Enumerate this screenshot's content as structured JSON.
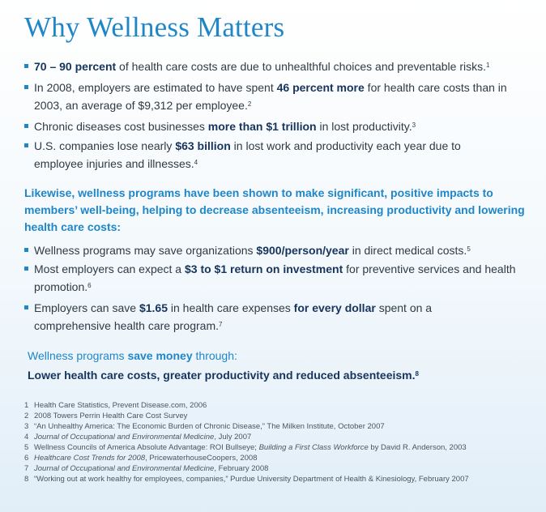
{
  "title": "Why Wellness Matters",
  "bullets_group_1": [
    {
      "parts": [
        {
          "text": "70 – 90 percent",
          "bold": true
        },
        {
          "text": " of health care costs are due to unhealthful choices and preventable risks.",
          "bold": false
        }
      ],
      "sup": "1"
    },
    {
      "parts": [
        {
          "text": "In 2008, employers are estimated to have spent ",
          "bold": false
        },
        {
          "text": "46 percent more",
          "bold": true
        },
        {
          "text": " for health care costs than in 2003, an average of $9,312 per employee.",
          "bold": false
        }
      ],
      "sup": "2"
    },
    {
      "parts": [
        {
          "text": "Chronic diseases cost businesses ",
          "bold": false
        },
        {
          "text": "more than $1 trillion",
          "bold": true
        },
        {
          "text": " in lost productivity.",
          "bold": false
        }
      ],
      "sup": "3"
    },
    {
      "parts": [
        {
          "text": "U.S. companies lose nearly ",
          "bold": false
        },
        {
          "text": "$63 billion",
          "bold": true
        },
        {
          "text": " in lost work and productivity each year due to employee injuries and illnesses.",
          "bold": false
        }
      ],
      "sup": "4"
    }
  ],
  "intro": "Likewise, wellness programs have been shown to make significant, positive impacts to members’ well-being, helping to decrease absenteeism, increasing productivity and lowering health care costs:",
  "bullets_group_2": [
    {
      "parts": [
        {
          "text": "Wellness programs may save organizations ",
          "bold": false
        },
        {
          "text": "$900/person/year",
          "bold": true
        },
        {
          "text": " in direct medical costs.",
          "bold": false
        }
      ],
      "sup": "5"
    },
    {
      "parts": [
        {
          "text": "Most employers can expect a ",
          "bold": false
        },
        {
          "text": "$3 to $1 return on investment",
          "bold": true
        },
        {
          "text": " for preventive services and health promotion.",
          "bold": false
        }
      ],
      "sup": "6"
    },
    {
      "parts": [
        {
          "text": "Employers can save ",
          "bold": false
        },
        {
          "text": "$1.65",
          "bold": true
        },
        {
          "text": " in health care expenses ",
          "bold": false
        },
        {
          "text": "for every dollar",
          "bold": true
        },
        {
          "text": " spent on a comprehensive health care program.",
          "bold": false
        }
      ],
      "sup": "7"
    }
  ],
  "save_heading": {
    "prefix": "Wellness programs ",
    "bold": "save money",
    "suffix": " through:"
  },
  "save_line": {
    "text": "Lower health care costs, greater productivity and reduced absenteeism.",
    "sup": "8"
  },
  "footnotes": [
    {
      "num": "1",
      "parts": [
        {
          "text": "Health Care Statistics, Prevent Disease.com, 2006",
          "italic": false
        }
      ]
    },
    {
      "num": "2",
      "parts": [
        {
          "text": "2008 Towers Perrin Health Care Cost Survey",
          "italic": false
        }
      ]
    },
    {
      "num": "3",
      "parts": [
        {
          "text": "“An Unhealthy America: The Economic Burden of Chronic Disease,” The Milken Institute, October 2007",
          "italic": false
        }
      ]
    },
    {
      "num": "4",
      "parts": [
        {
          "text": "Journal of Occupational and Environmental Medicine",
          "italic": true
        },
        {
          "text": ", July 2007",
          "italic": false
        }
      ]
    },
    {
      "num": "5",
      "parts": [
        {
          "text": "Wellness Councils of America Absolute Advantage: ROI Bullseye; ",
          "italic": false
        },
        {
          "text": "Building a First Class Workforce",
          "italic": true
        },
        {
          "text": " by David R. Anderson, 2003",
          "italic": false
        }
      ]
    },
    {
      "num": "6",
      "parts": [
        {
          "text": "Healthcare Cost Trends for 2008",
          "italic": true
        },
        {
          "text": ", PricewaterhouseCoopers, 2008",
          "italic": false
        }
      ]
    },
    {
      "num": "7",
      "parts": [
        {
          "text": "Journal of Occupational and Environmental Medicine",
          "italic": true
        },
        {
          "text": ", February 2008",
          "italic": false
        }
      ]
    },
    {
      "num": "8",
      "parts": [
        {
          "text": "“Working out at work healthy for employees, companies,” Purdue University Department of Health & Kinesiology, February 2007",
          "italic": false
        }
      ]
    }
  ],
  "colors": {
    "accent_blue": "#1f86c8",
    "navy_bold": "#17345c",
    "body_text": "#2f3a44"
  }
}
